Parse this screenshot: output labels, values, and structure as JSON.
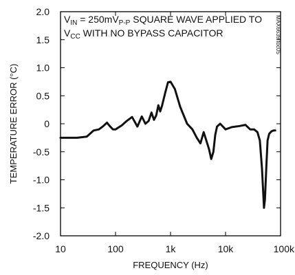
{
  "chart_data": {
    "type": "line",
    "xlabel": "FREQUENCY (Hz)",
    "ylabel": "TEMPERATURE ERROR (°C)",
    "x_scale": "log",
    "xlim": [
      10,
      100000
    ],
    "ylim": [
      -2.0,
      2.0
    ],
    "x_ticks": [
      10,
      100,
      1000,
      10000,
      100000
    ],
    "x_tick_labels": [
      "10",
      "100",
      "1k",
      "10k",
      "100k"
    ],
    "y_ticks": [
      2.0,
      1.5,
      1.0,
      0.5,
      0,
      -0.5,
      -1.0,
      -1.5,
      -2.0
    ],
    "y_tick_labels": [
      "2.0",
      "1.5",
      "1.0",
      "0.5",
      "0",
      "-0.5",
      "-1.0",
      "-1.5",
      "-2.0"
    ],
    "grid": false,
    "annotation": {
      "line1": {
        "v": "V",
        "v_sub": "IN",
        "mid": " = 250mV",
        "pp_sub": "P-P",
        "rest": " SQUARE WAVE APPLIED TO"
      },
      "line2": {
        "v": "V",
        "v_sub": "CC",
        "rest": " WITH NO BYPASS CAPACITOR"
      }
    },
    "side_label": "MAX6639 toc05",
    "series": [
      {
        "x": [
          10,
          20,
          30,
          40,
          50,
          60,
          70,
          80,
          90,
          100,
          130,
          160,
          200,
          250,
          300,
          350,
          400,
          450,
          500,
          550,
          600,
          650,
          700,
          800,
          900,
          1000,
          1200,
          1500,
          2000,
          2500,
          3000,
          3500,
          4000,
          5000,
          5500,
          6000,
          6500,
          7000,
          8000,
          10000,
          13000,
          18000,
          23000,
          28000,
          33000,
          38000,
          42000,
          46000,
          50000,
          52000,
          55000,
          58000,
          62000,
          66000,
          70000,
          75000,
          80000
        ],
        "y": [
          -0.25,
          -0.25,
          -0.23,
          -0.12,
          -0.1,
          -0.04,
          0.02,
          -0.05,
          -0.1,
          -0.1,
          -0.03,
          0.05,
          0.12,
          -0.05,
          0.13,
          0.0,
          0.05,
          0.2,
          0.07,
          0.15,
          0.33,
          0.22,
          0.32,
          0.55,
          0.74,
          0.75,
          0.62,
          0.3,
          0.0,
          -0.1,
          -0.25,
          -0.35,
          -0.15,
          -0.45,
          -0.63,
          -0.5,
          -0.2,
          -0.05,
          0.0,
          -0.1,
          -0.06,
          -0.04,
          -0.02,
          -0.1,
          -0.1,
          -0.15,
          -0.3,
          -0.8,
          -1.5,
          -1.35,
          -0.8,
          -0.3,
          -0.18,
          -0.15,
          -0.13,
          -0.12,
          -0.12
        ]
      }
    ]
  }
}
